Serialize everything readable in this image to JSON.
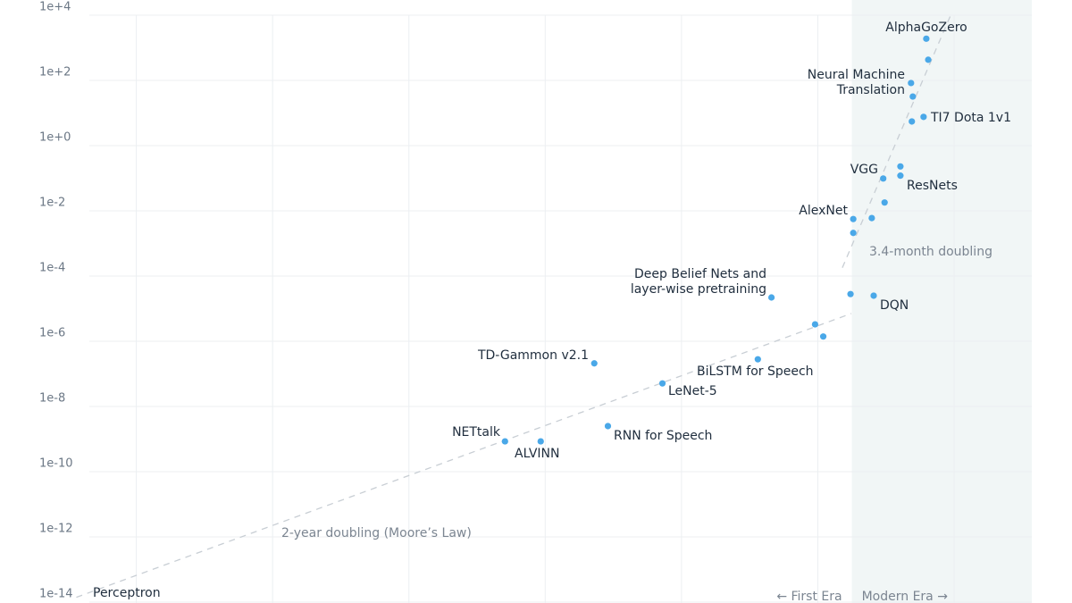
{
  "chart_data": {
    "type": "scatter",
    "log_y": true,
    "xlim": [
      1950,
      2025.7
    ],
    "ylim": [
      1e-14,
      10000
    ],
    "yticks": [
      {
        "value": 10000,
        "label": "1e+4"
      },
      {
        "value": 100,
        "label": "1e+2"
      },
      {
        "value": 1,
        "label": "1e+0"
      },
      {
        "value": 0.01,
        "label": "1e-2"
      },
      {
        "value": 0.0001,
        "label": "1e-4"
      },
      {
        "value": 1e-06,
        "label": "1e-6"
      },
      {
        "value": 1e-08,
        "label": "1e-8"
      },
      {
        "value": 1e-10,
        "label": "1e-10"
      },
      {
        "value": 1e-12,
        "label": "1e-12"
      },
      {
        "value": 1e-14,
        "label": "1e-14"
      }
    ],
    "xgrid": [
      1960,
      1970,
      1980,
      1990,
      2000,
      2010,
      2020
    ],
    "grid": true,
    "color": "#4aa8e8",
    "shaded_from": 2012.5,
    "era_labels": [
      "← First Era",
      "Modern Era →"
    ],
    "x": [
      1958,
      1987.05,
      1989.67,
      1994.6,
      1993.6,
      1998.6,
      2005.6,
      2006.6,
      2009.8,
      2010.4,
      2012.4,
      2014.1,
      2012.6,
      2012.6,
      2013.96,
      2014.9,
      2014.8,
      2016.06,
      2016.06,
      2016.9,
      2017.76,
      2016.84,
      2016.97,
      2018.1,
      2017.96
    ],
    "values": [
      5e-15,
      8.5e-10,
      8.5e-10,
      2.5e-09,
      2.1e-07,
      5.1e-08,
      2.8e-07,
      2.2e-05,
      3.3e-06,
      1.4e-06,
      2.8e-05,
      2.5e-05,
      0.0056,
      0.0021,
      0.006,
      0.018,
      0.098,
      0.23,
      0.12,
      5.5,
      7.6,
      83,
      32,
      430,
      1900
    ],
    "labels": [
      "Perceptron",
      "NETtalk",
      "ALVINN",
      "RNN for Speech",
      "TD-Gammon v2.1",
      "LeNet-5",
      "BiLSTM for Speech",
      [
        "Deep Belief Nets and",
        "layer-wise pretraining"
      ],
      null,
      null,
      null,
      "DQN",
      "AlexNet",
      null,
      null,
      null,
      "VGG",
      null,
      "ResNets",
      null,
      "TI7 Dota 1v1",
      [
        "Neural Machine",
        "Translation"
      ],
      null,
      null,
      "AlphaGoZero"
    ],
    "trends": [
      {
        "name": "2-year doubling (Moore’s Law)",
        "x": [
          1955.6,
          2012.46
        ],
        "values": [
          1.4e-14,
          7.1e-06
        ]
      },
      {
        "name": "3.4-month doubling",
        "x": [
          2011.8,
          2019.79
        ],
        "values": [
          0.00018,
          11000
        ]
      }
    ]
  }
}
